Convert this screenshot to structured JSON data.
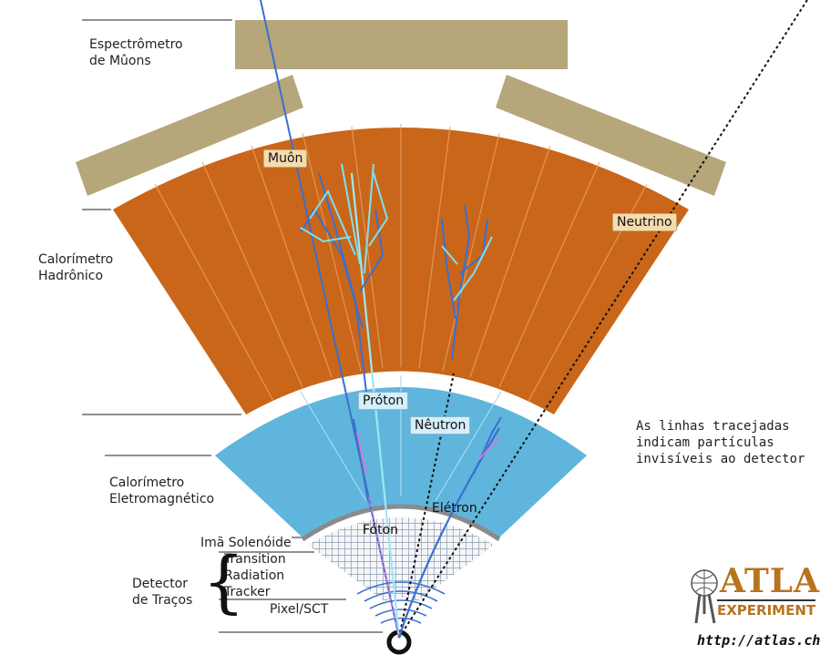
{
  "layers": {
    "muon_spectrometer": [
      "Espectrômetro",
      "de Mûons"
    ],
    "hadronic": [
      "Calorímetro",
      "Hadrônico"
    ],
    "electromagnetic": [
      "Calorímetro",
      "Eletromagnético"
    ],
    "solenoid": "Imã Solenóide",
    "trt": [
      "Transition",
      "Radiation",
      "Tracker"
    ],
    "pixel": "Pixel/SCT",
    "tracking": [
      "Detector",
      "de Traços"
    ]
  },
  "particles": {
    "muon": "Muôn",
    "neutrino": "Neutrino",
    "proton": "Próton",
    "neutron": "Nêutron",
    "electron": "Elétron",
    "photon": "Fóton"
  },
  "note": [
    "As linhas tracejadas",
    "indicam partículas",
    "invisíveis ao detector"
  ],
  "logo": {
    "name": "ATLAS",
    "sub": "EXPERIMENT",
    "url": "http://atlas.ch"
  },
  "colors": {
    "muon_chamber": "#b5a77a",
    "hadronic": "#c9661a",
    "electromagnetic": "#5fb5dc",
    "tracker_mesh": "#9aa6b6",
    "track_blue": "#3b6fd0",
    "track_cyan": "#7fe0f0",
    "track_pink": "#d07ad6"
  }
}
